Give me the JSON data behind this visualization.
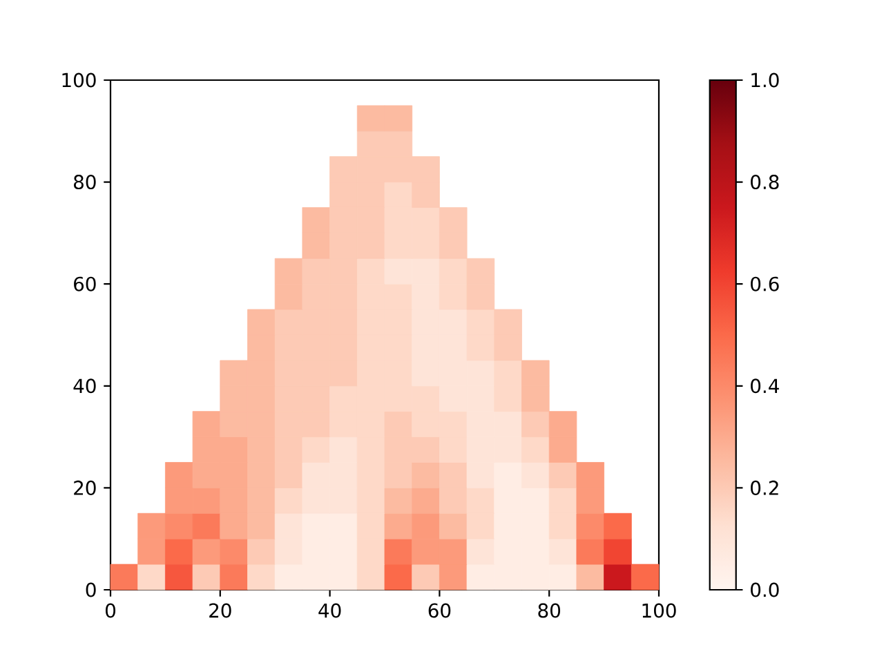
{
  "chart_data": {
    "type": "scatter",
    "marker": "square",
    "x": [
      2.5,
      7.5,
      12.5,
      17.5,
      22.5,
      27.5,
      32.5,
      37.5,
      42.5,
      47.5,
      52.5,
      57.5,
      62.5,
      67.5,
      72.5,
      77.5,
      82.5,
      87.5,
      92.5,
      97.5,
      7.5,
      12.5,
      17.5,
      22.5,
      27.5,
      32.5,
      37.5,
      42.5,
      47.5,
      52.5,
      57.5,
      62.5,
      67.5,
      72.5,
      77.5,
      82.5,
      87.5,
      92.5,
      7.5,
      12.5,
      17.5,
      22.5,
      27.5,
      32.5,
      37.5,
      42.5,
      47.5,
      52.5,
      57.5,
      62.5,
      67.5,
      72.5,
      77.5,
      82.5,
      87.5,
      92.5,
      12.5,
      17.5,
      22.5,
      27.5,
      32.5,
      37.5,
      42.5,
      47.5,
      52.5,
      57.5,
      62.5,
      67.5,
      72.5,
      77.5,
      82.5,
      87.5,
      12.5,
      17.5,
      22.5,
      27.5,
      32.5,
      37.5,
      42.5,
      47.5,
      52.5,
      57.5,
      62.5,
      67.5,
      72.5,
      77.5,
      82.5,
      87.5,
      17.5,
      22.5,
      27.5,
      32.5,
      37.5,
      42.5,
      47.5,
      52.5,
      57.5,
      62.5,
      67.5,
      72.5,
      77.5,
      82.5,
      17.5,
      22.5,
      27.5,
      32.5,
      37.5,
      42.5,
      47.5,
      52.5,
      57.5,
      62.5,
      67.5,
      72.5,
      77.5,
      82.5,
      22.5,
      27.5,
      32.5,
      37.5,
      42.5,
      47.5,
      52.5,
      57.5,
      62.5,
      67.5,
      72.5,
      77.5,
      22.5,
      27.5,
      32.5,
      37.5,
      42.5,
      47.5,
      52.5,
      57.5,
      62.5,
      67.5,
      72.5,
      77.5,
      27.5,
      32.5,
      37.5,
      42.5,
      47.5,
      52.5,
      57.5,
      62.5,
      67.5,
      72.5,
      27.5,
      32.5,
      37.5,
      42.5,
      47.5,
      52.5,
      57.5,
      62.5,
      67.5,
      72.5,
      32.5,
      37.5,
      42.5,
      47.5,
      52.5,
      57.5,
      62.5,
      67.5,
      32.5,
      37.5,
      42.5,
      47.5,
      52.5,
      57.5,
      62.5,
      67.5,
      37.5,
      42.5,
      47.5,
      52.5,
      57.5,
      62.5,
      37.5,
      42.5,
      47.5,
      52.5,
      57.5,
      62.5,
      42.5,
      47.5,
      52.5,
      57.5,
      42.5,
      47.5,
      52.5,
      57.5,
      47.5,
      52.5,
      47.5,
      52.5
    ],
    "values": [
      2.5,
      2.5,
      2.5,
      2.5,
      2.5,
      2.5,
      2.5,
      2.5,
      2.5,
      2.5,
      2.5,
      2.5,
      2.5,
      2.5,
      2.5,
      2.5,
      2.5,
      2.5,
      2.5,
      2.5,
      7.5,
      7.5,
      7.5,
      7.5,
      7.5,
      7.5,
      7.5,
      7.5,
      7.5,
      7.5,
      7.5,
      7.5,
      7.5,
      7.5,
      7.5,
      7.5,
      7.5,
      7.5,
      12.5,
      12.5,
      12.5,
      12.5,
      12.5,
      12.5,
      12.5,
      12.5,
      12.5,
      12.5,
      12.5,
      12.5,
      12.5,
      12.5,
      12.5,
      12.5,
      12.5,
      12.5,
      17.5,
      17.5,
      17.5,
      17.5,
      17.5,
      17.5,
      17.5,
      17.5,
      17.5,
      17.5,
      17.5,
      17.5,
      17.5,
      17.5,
      17.5,
      17.5,
      22.5,
      22.5,
      22.5,
      22.5,
      22.5,
      22.5,
      22.5,
      22.5,
      22.5,
      22.5,
      22.5,
      22.5,
      22.5,
      22.5,
      22.5,
      22.5,
      27.5,
      27.5,
      27.5,
      27.5,
      27.5,
      27.5,
      27.5,
      27.5,
      27.5,
      27.5,
      27.5,
      27.5,
      27.5,
      27.5,
      32.5,
      32.5,
      32.5,
      32.5,
      32.5,
      32.5,
      32.5,
      32.5,
      32.5,
      32.5,
      32.5,
      32.5,
      32.5,
      32.5,
      37.5,
      37.5,
      37.5,
      37.5,
      37.5,
      37.5,
      37.5,
      37.5,
      37.5,
      37.5,
      37.5,
      37.5,
      42.5,
      42.5,
      42.5,
      42.5,
      42.5,
      42.5,
      42.5,
      42.5,
      42.5,
      42.5,
      42.5,
      42.5,
      47.5,
      47.5,
      47.5,
      47.5,
      47.5,
      47.5,
      47.5,
      47.5,
      47.5,
      47.5,
      52.5,
      52.5,
      52.5,
      52.5,
      52.5,
      52.5,
      52.5,
      52.5,
      52.5,
      52.5,
      57.5,
      57.5,
      57.5,
      57.5,
      57.5,
      57.5,
      57.5,
      57.5,
      62.5,
      62.5,
      62.5,
      62.5,
      62.5,
      62.5,
      62.5,
      62.5,
      67.5,
      67.5,
      67.5,
      67.5,
      67.5,
      67.5,
      72.5,
      72.5,
      72.5,
      72.5,
      72.5,
      72.5,
      77.5,
      77.5,
      77.5,
      77.5,
      82.5,
      82.5,
      82.5,
      82.5,
      87.5,
      87.5,
      92.5,
      92.5
    ],
    "cvalues": [
      0.45,
      0.15,
      0.55,
      0.2,
      0.45,
      0.15,
      0.05,
      0.05,
      0.05,
      0.15,
      0.5,
      0.2,
      0.35,
      0.05,
      0.05,
      0.05,
      0.05,
      0.25,
      0.75,
      0.5,
      0.35,
      0.5,
      0.35,
      0.4,
      0.2,
      0.1,
      0.05,
      0.05,
      0.15,
      0.45,
      0.35,
      0.35,
      0.1,
      0.05,
      0.05,
      0.1,
      0.45,
      0.6,
      0.35,
      0.4,
      0.45,
      0.3,
      0.25,
      0.1,
      0.05,
      0.05,
      0.15,
      0.3,
      0.35,
      0.25,
      0.15,
      0.05,
      0.05,
      0.15,
      0.4,
      0.5,
      0.35,
      0.35,
      0.3,
      0.25,
      0.15,
      0.1,
      0.1,
      0.15,
      0.25,
      0.3,
      0.2,
      0.15,
      0.05,
      0.05,
      0.15,
      0.35,
      0.35,
      0.3,
      0.3,
      0.25,
      0.2,
      0.1,
      0.1,
      0.15,
      0.2,
      0.25,
      0.2,
      0.1,
      0.05,
      0.1,
      0.2,
      0.35,
      0.3,
      0.3,
      0.25,
      0.2,
      0.15,
      0.1,
      0.15,
      0.2,
      0.2,
      0.15,
      0.1,
      0.1,
      0.15,
      0.3,
      0.3,
      0.25,
      0.25,
      0.2,
      0.2,
      0.15,
      0.15,
      0.2,
      0.15,
      0.15,
      0.1,
      0.1,
      0.2,
      0.3,
      0.25,
      0.25,
      0.2,
      0.2,
      0.15,
      0.15,
      0.15,
      0.15,
      0.1,
      0.1,
      0.15,
      0.25,
      0.25,
      0.25,
      0.2,
      0.2,
      0.2,
      0.15,
      0.15,
      0.1,
      0.1,
      0.1,
      0.15,
      0.25,
      0.25,
      0.2,
      0.2,
      0.2,
      0.15,
      0.15,
      0.1,
      0.1,
      0.15,
      0.2,
      0.25,
      0.2,
      0.2,
      0.2,
      0.15,
      0.15,
      0.1,
      0.1,
      0.15,
      0.2,
      0.25,
      0.2,
      0.2,
      0.15,
      0.15,
      0.1,
      0.15,
      0.2,
      0.25,
      0.2,
      0.2,
      0.15,
      0.1,
      0.1,
      0.15,
      0.2,
      0.25,
      0.2,
      0.2,
      0.15,
      0.15,
      0.2,
      0.25,
      0.2,
      0.2,
      0.15,
      0.15,
      0.2,
      0.2,
      0.2,
      0.15,
      0.2,
      0.2,
      0.2,
      0.2,
      0.2,
      0.2,
      0.2,
      0.25,
      0.25
    ],
    "xlim": [
      0,
      100
    ],
    "ylim": [
      0,
      100
    ],
    "xticks": [
      0,
      20,
      40,
      60,
      80,
      100
    ],
    "yticks": [
      0,
      20,
      40,
      60,
      80,
      100
    ],
    "clim": [
      0,
      1
    ],
    "cticks": [
      {
        "value": 0,
        "label": "0.0"
      },
      0.2,
      0.4,
      0.6,
      0.8,
      {
        "value": 1,
        "label": "1.0"
      }
    ]
  }
}
